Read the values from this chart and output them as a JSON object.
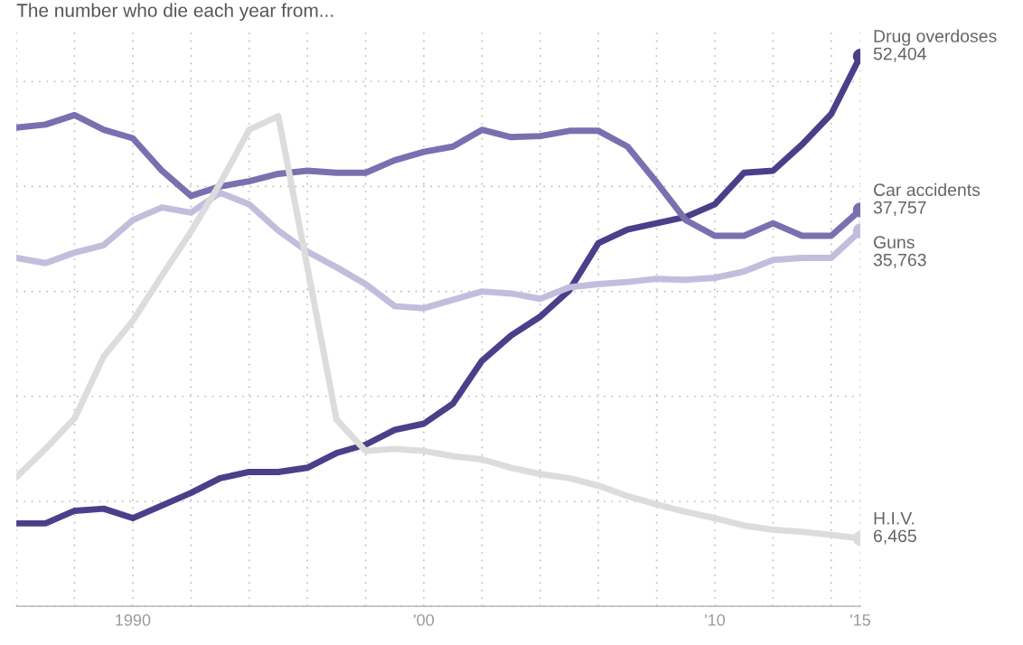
{
  "chart_data": {
    "type": "line",
    "title": "The number who die each year from...",
    "x": [
      1986,
      1987,
      1988,
      1989,
      1990,
      1991,
      1992,
      1993,
      1994,
      1995,
      1996,
      1997,
      1998,
      1999,
      2000,
      2001,
      2002,
      2003,
      2004,
      2005,
      2006,
      2007,
      2008,
      2009,
      2010,
      2011,
      2012,
      2013,
      2014,
      2015
    ],
    "series": [
      {
        "name": "Drug overdoses",
        "color": "#4b3f8a",
        "values": [
          7900,
          7900,
          9100,
          9300,
          8400,
          9600,
          10800,
          12200,
          12800,
          12800,
          13200,
          14600,
          15400,
          16800,
          17400,
          19300,
          23400,
          25800,
          27600,
          30100,
          34600,
          35900,
          36500,
          37100,
          38300,
          41300,
          41500,
          44000,
          46900,
          52404
        ],
        "value_labels": [
          null,
          null,
          null,
          null,
          null,
          null,
          null,
          null,
          null,
          null,
          null,
          null,
          null,
          null,
          null,
          null,
          null,
          null,
          null,
          null,
          null,
          null,
          null,
          null,
          null,
          null,
          null,
          null,
          null,
          "52,404"
        ]
      },
      {
        "name": "Car accidents",
        "color": "#7b6fb0",
        "values": [
          45600,
          45900,
          46800,
          45400,
          44600,
          41500,
          39100,
          40000,
          40500,
          41200,
          41500,
          41300,
          41300,
          42500,
          43300,
          43800,
          45400,
          44700,
          44800,
          45300,
          45300,
          43800,
          40400,
          36800,
          35300,
          35300,
          36500,
          35300,
          35300,
          37757
        ],
        "value_labels": [
          null,
          null,
          null,
          null,
          null,
          null,
          null,
          null,
          null,
          null,
          null,
          null,
          null,
          null,
          null,
          null,
          null,
          null,
          null,
          null,
          null,
          null,
          null,
          null,
          null,
          null,
          null,
          null,
          null,
          "37,757"
        ]
      },
      {
        "name": "Guns",
        "color": "#c3bddd",
        "values": [
          33200,
          32700,
          33700,
          34400,
          36800,
          38000,
          37500,
          39400,
          38300,
          35800,
          33800,
          32300,
          30700,
          28600,
          28400,
          29200,
          30000,
          29800,
          29300,
          30400,
          30700,
          30900,
          31200,
          31100,
          31300,
          31900,
          33000,
          33200,
          33200,
          35763
        ],
        "value_labels": [
          null,
          null,
          null,
          null,
          null,
          null,
          null,
          null,
          null,
          null,
          null,
          null,
          null,
          null,
          null,
          null,
          null,
          null,
          null,
          null,
          null,
          null,
          null,
          null,
          null,
          null,
          null,
          null,
          null,
          "35,763"
        ]
      },
      {
        "name": "H.I.V.",
        "color": "#dcdcdc",
        "values": [
          12300,
          15000,
          17900,
          23800,
          27200,
          31500,
          35700,
          40300,
          45400,
          46700,
          32300,
          17800,
          14800,
          15000,
          14800,
          14300,
          14000,
          13200,
          12600,
          12200,
          11500,
          10500,
          9700,
          9000,
          8400,
          7700,
          7300,
          7100,
          6800,
          6465
        ],
        "value_labels": [
          null,
          null,
          null,
          null,
          null,
          null,
          null,
          null,
          null,
          null,
          null,
          null,
          null,
          null,
          null,
          null,
          null,
          null,
          null,
          null,
          null,
          null,
          null,
          null,
          null,
          null,
          null,
          null,
          null,
          "6,465"
        ]
      }
    ],
    "xlim": [
      1986,
      2015
    ],
    "xticks": [
      {
        "value": 1986,
        "label": null
      },
      {
        "value": 1988,
        "label": null
      },
      1990,
      {
        "value": 1992,
        "label": null
      },
      {
        "value": 1994,
        "label": null
      },
      {
        "value": 1996,
        "label": null
      },
      {
        "value": 1998,
        "label": null
      },
      {
        "value": 2000,
        "label": "'00"
      },
      {
        "value": 2002,
        "label": null
      },
      {
        "value": 2004,
        "label": null
      },
      {
        "value": 2006,
        "label": null
      },
      {
        "value": 2008,
        "label": null
      },
      {
        "value": 2010,
        "label": "'10"
      },
      {
        "value": 2012,
        "label": null
      },
      {
        "value": 2014,
        "label": null
      },
      {
        "value": 2015,
        "label": "'15"
      }
    ],
    "ylim": [
      0,
      55000
    ],
    "tick_labels": "x",
    "grid": true,
    "legend": "right",
    "line_style": "solid"
  }
}
